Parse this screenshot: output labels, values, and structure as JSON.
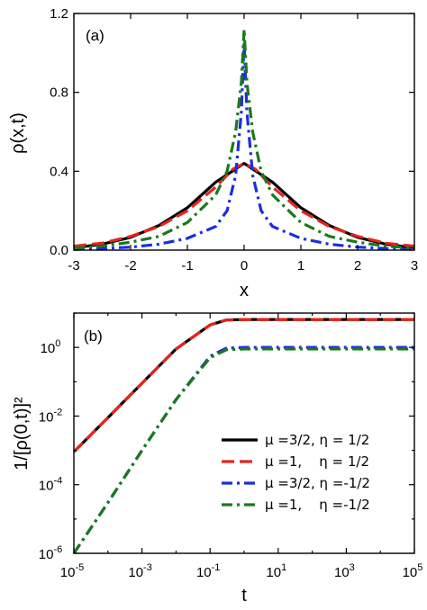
{
  "chart_data": [
    {
      "type": "line",
      "panel_label": "(a)",
      "xlabel": "x",
      "ylabel": "ρ(x,t)",
      "xlim": [
        -3,
        3
      ],
      "ylim": [
        0,
        1.2
      ],
      "xticks": [
        -3,
        -2,
        -1,
        0,
        1,
        2,
        3
      ],
      "ytick_labels": [
        "0.0",
        "0.4",
        "0.8",
        "1.2"
      ],
      "series": [
        {
          "color": "#000000",
          "dash": "solid",
          "x": [
            -3,
            -2.5,
            -2,
            -1.5,
            -1,
            -0.5,
            0,
            0.5,
            1,
            1.5,
            2,
            2.5,
            3
          ],
          "y": [
            0.012,
            0.03,
            0.065,
            0.125,
            0.215,
            0.345,
            0.44,
            0.345,
            0.215,
            0.125,
            0.065,
            0.03,
            0.012
          ]
        },
        {
          "color": "#e8221c",
          "dash": "dashed",
          "x": [
            -3,
            -2.5,
            -2,
            -1.5,
            -1,
            -0.5,
            -0.2,
            0,
            0.2,
            0.5,
            1,
            1.5,
            2,
            2.5,
            3
          ],
          "y": [
            0.02,
            0.035,
            0.07,
            0.12,
            0.2,
            0.32,
            0.41,
            0.44,
            0.41,
            0.32,
            0.2,
            0.12,
            0.07,
            0.035,
            0.02
          ]
        },
        {
          "color": "#1a2ee0",
          "dash": "dashdot",
          "x": [
            -3,
            -2.5,
            -2,
            -1.5,
            -1,
            -0.5,
            -0.3,
            -0.15,
            -0.05,
            0,
            0.05,
            0.15,
            0.3,
            0.5,
            1,
            1.5,
            2,
            2.5,
            3
          ],
          "y": [
            0.004,
            0.008,
            0.015,
            0.03,
            0.06,
            0.12,
            0.2,
            0.38,
            0.7,
            1.05,
            0.7,
            0.38,
            0.2,
            0.12,
            0.06,
            0.03,
            0.015,
            0.008,
            0.004
          ]
        },
        {
          "color": "#1a7a1a",
          "dash": "dashdot",
          "x": [
            -3,
            -2.5,
            -2,
            -1.5,
            -1,
            -0.5,
            -0.3,
            -0.15,
            -0.05,
            0,
            0.05,
            0.15,
            0.3,
            0.5,
            1,
            1.5,
            2,
            2.5,
            3
          ],
          "y": [
            0.01,
            0.02,
            0.04,
            0.07,
            0.14,
            0.28,
            0.4,
            0.6,
            0.85,
            1.12,
            0.85,
            0.6,
            0.4,
            0.28,
            0.14,
            0.07,
            0.04,
            0.02,
            0.01
          ]
        }
      ]
    },
    {
      "type": "line",
      "panel_label": "(b)",
      "xlabel": "t",
      "ylabel": "1/[ρ(0,t)]²",
      "xscale": "log",
      "yscale": "log",
      "xlim_exp": [
        -5,
        5
      ],
      "ylim_exp": [
        -6,
        1
      ],
      "xtick_exps": [
        -5,
        -3,
        -1,
        1,
        3,
        5
      ],
      "ytick_exps": [
        -6,
        -4,
        -2,
        0
      ],
      "legend": {
        "position": "right",
        "entries": [
          {
            "label": "μ =3/2, η = 1/2",
            "color": "#000000",
            "dash": "solid"
          },
          {
            "label": "μ =1,    η = 1/2",
            "color": "#e8221c",
            "dash": "dashed"
          },
          {
            "label": "μ =3/2, η =-1/2",
            "color": "#1a2ee0",
            "dash": "dashdot"
          },
          {
            "label": "μ =1,    η =-1/2",
            "color": "#1a7a1a",
            "dash": "dashdot"
          }
        ]
      },
      "series": [
        {
          "color": "#000000",
          "dash": "solid",
          "t": [
            1e-05,
            0.0001,
            0.001,
            0.01,
            0.1,
            0.3,
            1,
            10,
            100,
            1000,
            10000,
            100000
          ],
          "y": [
            0.0009,
            0.009,
            0.09,
            0.9,
            4.5,
            6.3,
            6.5,
            6.5,
            6.5,
            6.5,
            6.5,
            6.5
          ]
        },
        {
          "color": "#e8221c",
          "dash": "dashed",
          "t": [
            1e-05,
            0.0001,
            0.001,
            0.01,
            0.1,
            0.3,
            1,
            10,
            100,
            1000,
            10000,
            100000
          ],
          "y": [
            0.0009,
            0.009,
            0.09,
            0.9,
            4.5,
            6.3,
            6.5,
            6.5,
            6.5,
            6.5,
            6.5,
            6.5
          ]
        },
        {
          "color": "#1a2ee0",
          "dash": "dashdot",
          "t": [
            1e-05,
            0.0001,
            0.001,
            0.01,
            0.1,
            0.3,
            1,
            10,
            100,
            1000,
            10000,
            100000
          ],
          "y": [
            1e-06,
            3e-05,
            0.001,
            0.03,
            0.55,
            0.95,
            1.0,
            1.0,
            1.0,
            1.0,
            1.0,
            1.0
          ]
        },
        {
          "color": "#1a7a1a",
          "dash": "dashdot",
          "t": [
            1e-05,
            0.0001,
            0.001,
            0.01,
            0.1,
            0.3,
            1,
            10,
            100,
            1000,
            10000,
            100000
          ],
          "y": [
            1e-06,
            3e-05,
            0.001,
            0.03,
            0.5,
            0.85,
            0.9,
            0.9,
            0.9,
            0.9,
            0.9,
            0.9
          ]
        }
      ]
    }
  ]
}
